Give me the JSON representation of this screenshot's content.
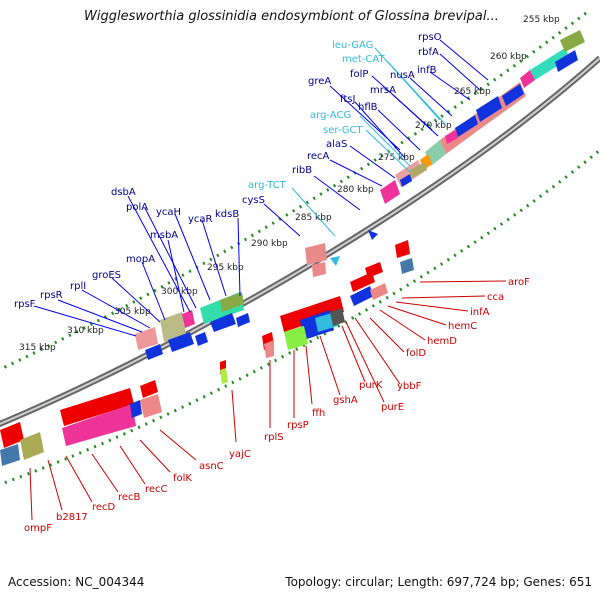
{
  "title": "Wigglesworthia glossinidia endosymbiont of Glossina brevipal...",
  "footer": {
    "accession": "Accession: NC_004344",
    "summary": "Topology: circular; Length: 697,724 bp; Genes: 651"
  },
  "colors": {
    "forward_gene": "#0000ee",
    "reverse_gene": "#ee0000",
    "rna_gene": "#33bbdd",
    "forward_label": "#00008b",
    "reverse_label": "#cc0000",
    "backbone": "#888888",
    "tick": "#228b22"
  },
  "scale_labels": [
    "255 kbp",
    "260 kbp",
    "265 kbp",
    "270 kbp",
    "275 kbp",
    "280 kbp",
    "285 kbp",
    "290 kbp",
    "295 kbp",
    "300 kbp",
    "305 kbp",
    "310 kbp",
    "315 kbp"
  ],
  "forward_genes": [
    "rpsO",
    "rbfA",
    "infB",
    "leu-GAG",
    "met-CAT",
    "folP",
    "nusA",
    "greA",
    "mrsA",
    "ftsJ",
    "hflB",
    "arg-ACG",
    "ser-GCT",
    "alaS",
    "recA",
    "ribB",
    "arg-TCT",
    "cysS",
    "dsbA",
    "polA",
    "ycaH",
    "ycaR",
    "kdsB",
    "msbA",
    "mopA",
    "groES",
    "rplI",
    "rpsR",
    "rpsF"
  ],
  "reverse_genes": [
    "aroF",
    "cca",
    "infA",
    "hemC",
    "hemD",
    "folD",
    "ybbF",
    "purE",
    "purK",
    "gshA",
    "ffh",
    "rpsP",
    "rplS",
    "yajC",
    "asnC",
    "folK",
    "recC",
    "recB",
    "recD",
    "b2817",
    "ompF"
  ]
}
